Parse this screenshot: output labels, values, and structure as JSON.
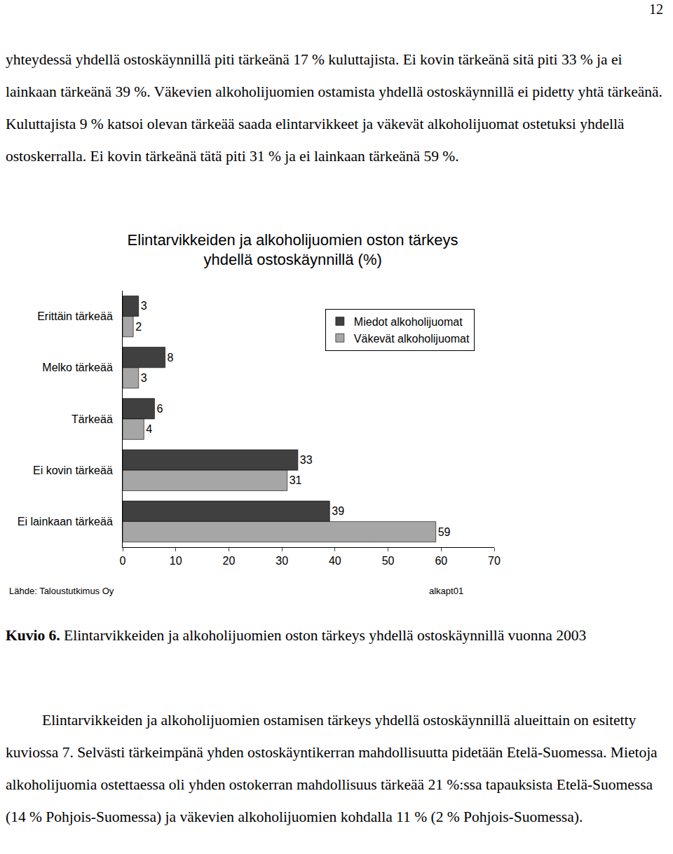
{
  "page_number": 12,
  "paragraphs_top": [
    "yhteydessä yhdellä ostoskäynnillä piti tärkeänä 17 % kuluttajista. Ei kovin tärkeänä sitä piti 33 % ja ei lainkaan tärkeänä 39 %. Väkevien alkoholijuomien ostamista yhdellä ostoskäynnillä ei pidetty yhtä tärkeänä. Kuluttajista 9 % katsoi olevan tärkeää saada elintarvikkeet ja väkevät alkoholijuomat ostetuksi yhdellä ostoskerralla. Ei kovin tärkeänä tätä piti 31 % ja ei lainkaan tärkeänä 59 %."
  ],
  "chart_data": {
    "type": "bar",
    "title": "Elintarvikkeiden ja alkoholijuomien oston tärkeys\nyhdellä ostoskäynnillä (%)",
    "orientation": "horizontal",
    "categories": [
      "Erittäin tärkeää",
      "Melko tärkeää",
      "Tärkeää",
      "Ei kovin tärkeää",
      "Ei lainkaan tärkeää"
    ],
    "series": [
      {
        "name": "Miedot alkoholijuomat",
        "color": "#404040",
        "values": [
          3,
          8,
          6,
          33,
          39
        ]
      },
      {
        "name": "Väkevät alkoholijuomat",
        "color": "#a6a6a6",
        "values": [
          2,
          3,
          4,
          31,
          59
        ]
      }
    ],
    "xlim": [
      0,
      70
    ],
    "xticks": [
      0,
      10,
      20,
      30,
      40,
      50,
      60,
      70
    ],
    "grid": false,
    "legend": "top-right",
    "data_labels": true,
    "annotations": [
      "Lähde: Taloustutkimus Oy",
      "alkapt01"
    ]
  },
  "caption": {
    "label": "Kuvio 6.",
    "text": "Elintarvikkeiden ja alkoholijuomien oston tärkeys yhdellä ostoskäynnillä vuonna 2003"
  },
  "paragraphs_bottom": [
    "Elintarvikkeiden ja alkoholijuomien ostamisen tärkeys yhdellä ostoskäynnillä alueittain on esitetty kuviossa 7. Selvästi tärkeimpänä yhden ostoskäyntikerran mahdollisuutta pidetään Etelä-Suomessa. Mietoja alkoholijuomia ostettaessa oli yhden ostokerran mahdollisuus tärkeää 21 %:ssa tapauksista Etelä-Suomessa (14 % Pohjois-Suomessa) ja väkevien alkoholijuomien kohdalla 11 % (2 % Pohjois-Suomessa)."
  ]
}
